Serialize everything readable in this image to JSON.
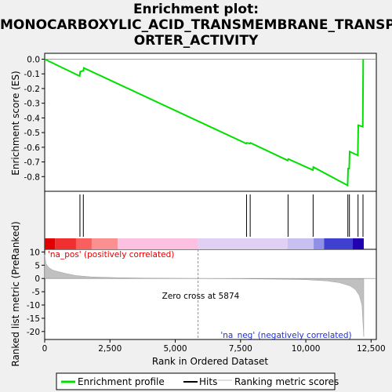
{
  "title_lines": [
    "Enrichment plot:",
    "MONOCARBOXYLIC_ACID_TRANSMEMBRANE_TRANSP",
    "ORTER_ACTIVITY"
  ],
  "chart_data": [
    {
      "type": "line",
      "panel": "enrichment",
      "ylabel": "Enrichment score (ES)",
      "ylim": [
        -0.9,
        0.04
      ],
      "yticks": [
        "0.0",
        "-0.1",
        "-0.2",
        "-0.3",
        "-0.4",
        "-0.5",
        "-0.6",
        "-0.7",
        "-0.8"
      ],
      "ytick_values": [
        0.0,
        -0.1,
        -0.2,
        -0.3,
        -0.4,
        -0.5,
        -0.6,
        -0.7,
        -0.8
      ],
      "color": "#00e000",
      "series": [
        {
          "name": "Enrichment profile",
          "x": [
            0,
            1340,
            1360,
            1480,
            1500,
            7720,
            7740,
            7860,
            7880,
            9310,
            9330,
            10270,
            10290,
            11600,
            11620,
            11660,
            11680,
            11990,
            12010,
            12180,
            12200
          ],
          "values": [
            0.0,
            -0.115,
            -0.085,
            -0.078,
            -0.06,
            -0.575,
            -0.57,
            -0.575,
            -0.57,
            -0.69,
            -0.68,
            -0.755,
            -0.735,
            -0.86,
            -0.745,
            -0.745,
            -0.63,
            -0.655,
            -0.45,
            -0.46,
            0.0
          ]
        }
      ]
    },
    {
      "type": "scatter",
      "panel": "hits",
      "series": [
        {
          "name": "Hits",
          "x": [
            1350,
            1480,
            7730,
            7870,
            9320,
            10280,
            11610,
            11670,
            12000,
            12190
          ]
        }
      ],
      "heatmap_colors": [
        "#e00000",
        "#f03030",
        "#f86060",
        "#fa9090",
        "#fcc0e0",
        "#e0d0f4",
        "#c8c0f0",
        "#9090e8",
        "#4040d0",
        "#2000b0"
      ]
    },
    {
      "type": "area",
      "panel": "ranked_list",
      "xlabel": "Rank in Ordered Dataset",
      "ylabel": "Ranked list metric (PreRanked)",
      "xlim": [
        0,
        12700
      ],
      "ylim": [
        -23,
        11
      ],
      "xticks": [
        "0",
        "2,500",
        "5,000",
        "7,500",
        "10,000",
        "12,500"
      ],
      "xtick_values": [
        0,
        2500,
        5000,
        7500,
        10000,
        12500
      ],
      "yticks": [
        "10",
        "5",
        "0",
        "-5",
        "-10",
        "-15",
        "-20"
      ],
      "ytick_values": [
        10,
        5,
        0,
        -5,
        -10,
        -15,
        -20
      ],
      "series": [
        {
          "name": "Ranking metric scores",
          "x": [
            0,
            50,
            150,
            300,
            500,
            800,
            1200,
            1800,
            2800,
            4000,
            5874,
            7500,
            9000,
            10000,
            10800,
            11300,
            11700,
            11900,
            12050,
            12150,
            12220
          ],
          "values": [
            9,
            5.5,
            4.2,
            3.2,
            2.6,
            1.9,
            1.1,
            0.6,
            0.3,
            0.12,
            0,
            -0.1,
            -0.25,
            -0.45,
            -0.9,
            -1.6,
            -2.8,
            -4.2,
            -6.5,
            -10,
            -22
          ]
        }
      ],
      "annotations": {
        "pos_label": "'na_pos' (positively correlated)",
        "neg_label": "'na_neg' (negatively correlated)",
        "zero_cross": "Zero cross at 5874"
      },
      "zero_cross_x": 5874
    }
  ],
  "legend": [
    {
      "label": "Enrichment profile",
      "color": "#00e000"
    },
    {
      "label": "Hits",
      "color": "#000000"
    },
    {
      "label": "Ranking metric scores",
      "color": "#c0c0c0"
    }
  ]
}
